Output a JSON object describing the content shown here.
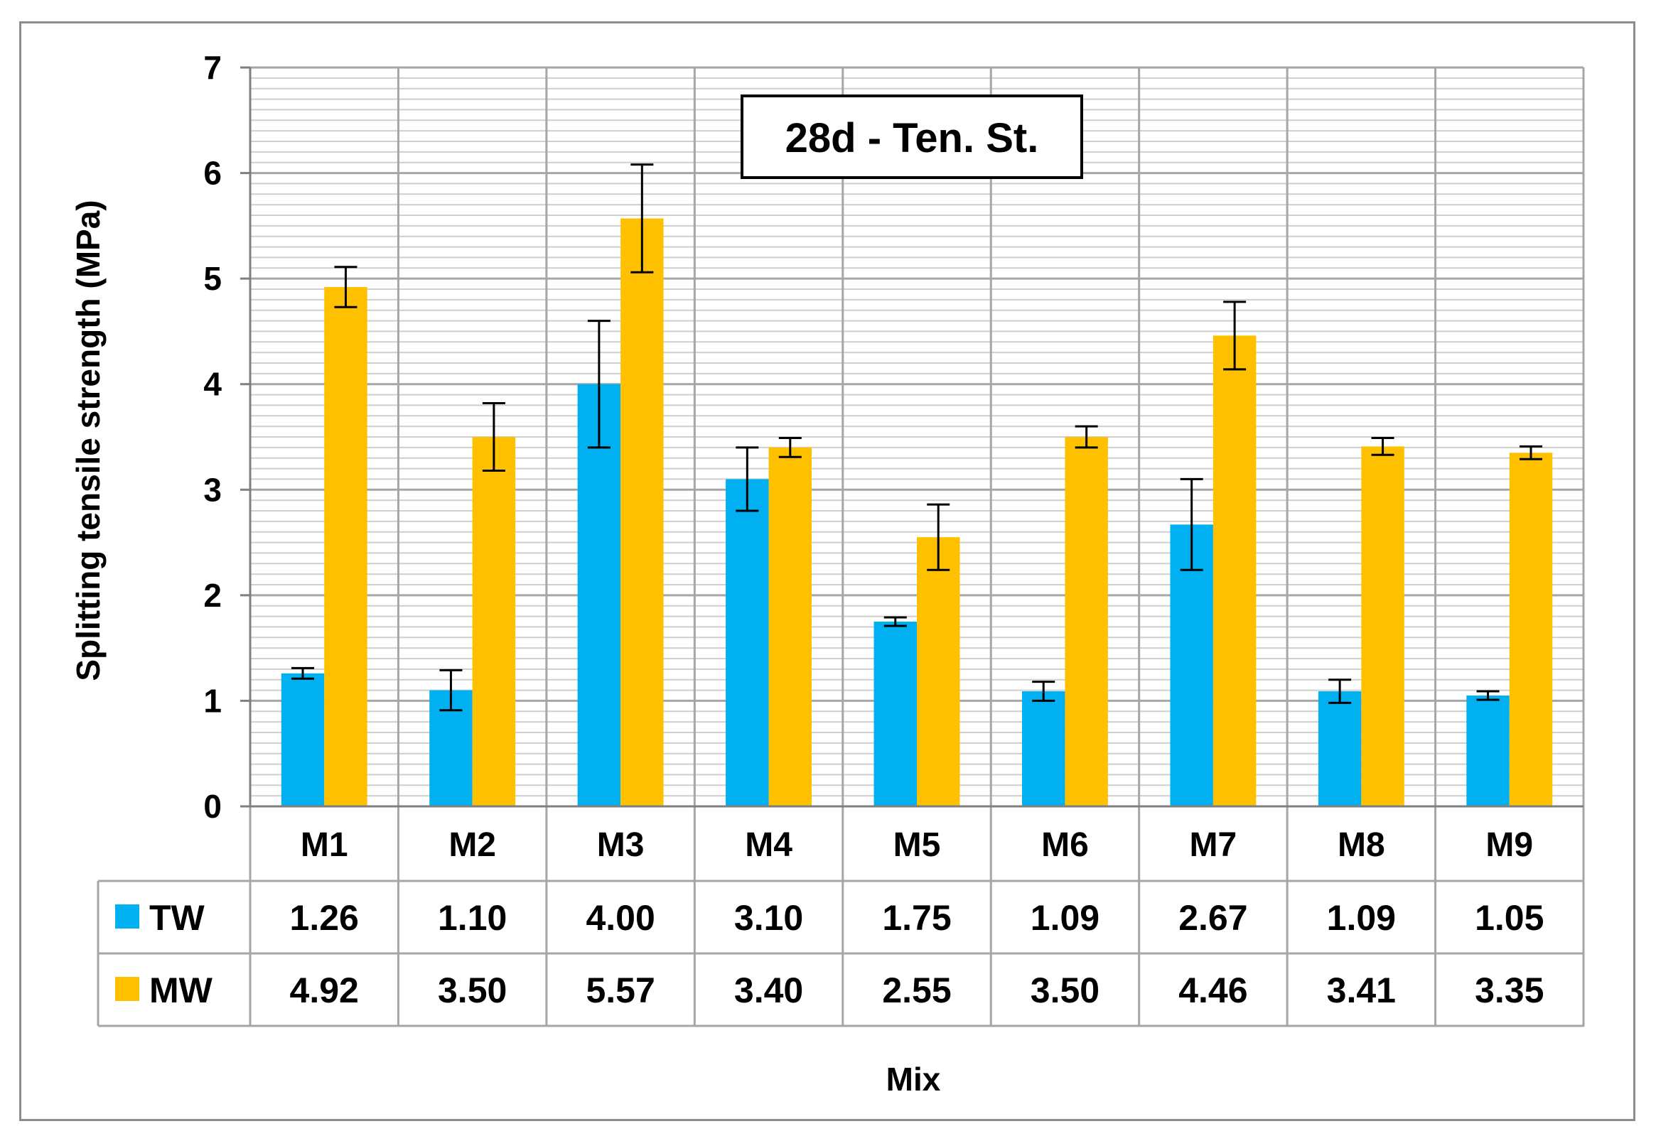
{
  "chart_data": {
    "type": "bar",
    "title": "28d - Ten. St.",
    "xlabel": "Mix",
    "ylabel": "Splitting  tensile strength (MPa)",
    "ylim": [
      0,
      7
    ],
    "y_ticks": [
      "0",
      "1",
      "2",
      "3",
      "4",
      "5",
      "6",
      "7"
    ],
    "grid": "major and minor horizontal gridlines, vertical category separators",
    "legend": "data table below plot",
    "categories": [
      "M1",
      "M2",
      "M3",
      "M4",
      "M5",
      "M6",
      "M7",
      "M8",
      "M9"
    ],
    "series": [
      {
        "name": "TW",
        "color": "#00B0F0",
        "values": [
          1.26,
          1.1,
          4.0,
          3.1,
          1.75,
          1.09,
          2.67,
          1.09,
          1.05
        ],
        "labels": [
          "1.26",
          "1.10",
          "4.00",
          "3.10",
          "1.75",
          "1.09",
          "2.67",
          "1.09",
          "1.05"
        ],
        "error": [
          0.05,
          0.19,
          0.6,
          0.3,
          0.04,
          0.09,
          0.43,
          0.11,
          0.04
        ]
      },
      {
        "name": "MW",
        "color": "#FFC000",
        "values": [
          4.92,
          3.5,
          5.57,
          3.4,
          2.55,
          3.5,
          4.46,
          3.41,
          3.35
        ],
        "labels": [
          "4.92",
          "3.50",
          "5.57",
          "3.40",
          "2.55",
          "3.50",
          "4.46",
          "3.41",
          "3.35"
        ],
        "error": [
          0.19,
          0.32,
          0.51,
          0.09,
          0.31,
          0.1,
          0.32,
          0.08,
          0.06
        ]
      }
    ]
  }
}
